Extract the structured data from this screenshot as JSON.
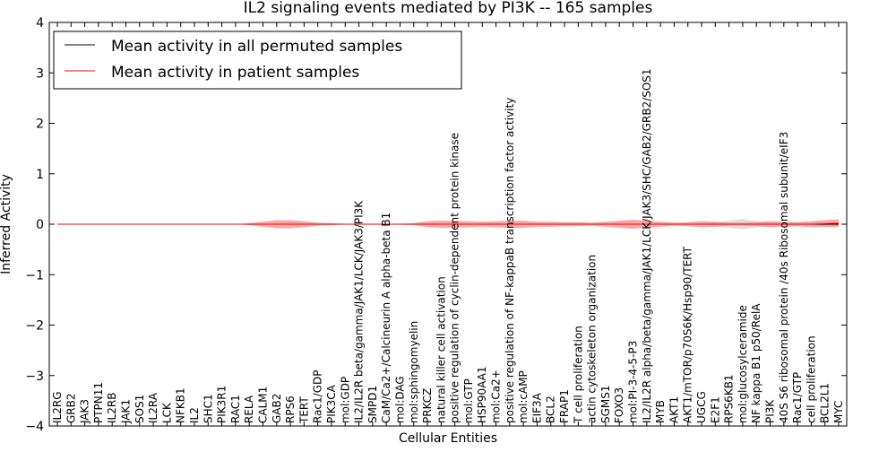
{
  "chart_data": {
    "type": "line",
    "title": "IL2 signaling events mediated by PI3K -- 165 samples",
    "xlabel": "Cellular Entities",
    "ylabel": "Inferred Activity",
    "ylim": [
      -4,
      4
    ],
    "yticks": [
      -4,
      -3,
      -2,
      -1,
      0,
      1,
      2,
      3,
      4
    ],
    "ytick_labels": [
      "−4",
      "−3",
      "−2",
      "−1",
      "0",
      "1",
      "2",
      "3",
      "4"
    ],
    "grid": false,
    "legend_position": "top-left",
    "categories": [
      "IL2RG",
      "GRB2",
      "JAK3",
      "PTPN11",
      "IL2RB",
      "JAK1",
      "SOS1",
      "IL2RA",
      "LCK",
      "NFKB1",
      "IL2",
      "SHC1",
      "PIK3R1",
      "RAC1",
      "RELA",
      "CALM1",
      "GAB2",
      "RPS6",
      "TERT",
      "Rac1/GDP",
      "PIK3CA",
      "mol:GDP",
      "IL2/IL2R beta/gamma/JAK1/LCK/JAK3/PI3K",
      "SMPD1",
      "CaM/Ca2+/Calcineurin A alpha-beta B1",
      "mol:DAG",
      "mol:sphingomyelin",
      "PRKCZ",
      "natural killer cell activation",
      "positive regulation of cyclin-dependent protein kinase",
      "mol:GTP",
      "HSP90AA1",
      "mol:Ca2+",
      "positive regulation of NF-kappaB transcription factor activity",
      "mol:cAMP",
      "EIF3A",
      "BCL2",
      "FRAP1",
      "T cell proliferation",
      "actin cytoskeleton organization",
      "SGMS1",
      "FOXO3",
      "mol:PI-3-4-5-P3",
      "IL2/IL2R alpha/beta/gamma/JAK1/LCK/JAK3/SHC/GAB2/GRB2/SOS1",
      "MYB",
      "AKT1",
      "AKT1/mTOR/p70S6K/Hsp90/TERT",
      "UGCG",
      "E2F1",
      "RPS6KB1",
      "mol:glucosylceramide",
      "NF kappa B1 p50/RelA",
      "PI3K",
      "40S S6 ribosomal protein /40s Ribosomal subunit/eIF3",
      "Rac1/GTP",
      "cell proliferation",
      "BCL2L1",
      "MYC"
    ],
    "series": [
      {
        "name": "Mean activity in all permuted samples",
        "color": "#000000",
        "values": [
          0,
          0,
          0,
          0,
          0,
          0,
          0,
          0,
          0,
          0,
          0,
          0,
          0,
          0,
          0,
          0,
          0,
          0,
          0,
          0,
          0,
          0,
          0,
          0,
          0,
          0,
          0,
          0,
          0,
          0,
          0,
          0,
          0,
          0,
          0,
          0,
          0,
          0,
          0,
          0,
          0,
          0,
          0,
          0,
          0,
          0,
          0,
          0,
          0,
          0,
          0,
          0,
          0,
          0,
          0,
          0,
          0,
          0
        ],
        "band_halfwidth": [
          0,
          0,
          0,
          0,
          0,
          0,
          0,
          0,
          0,
          0,
          0,
          0,
          0,
          0,
          0,
          0,
          0,
          0,
          0,
          0,
          0,
          0,
          0,
          0,
          0,
          0,
          0,
          0,
          0,
          0,
          0,
          0,
          0,
          0,
          0,
          0,
          0,
          0,
          0,
          0,
          0,
          0,
          0,
          0,
          0,
          0,
          0,
          0,
          0.04,
          0.07,
          0.1,
          0.06,
          0.04,
          0.03,
          0.03,
          0.03,
          0.03,
          0.03
        ],
        "band_color": "#c8c8c8"
      },
      {
        "name": "Mean activity in patient samples",
        "color": "#ff0000",
        "values": [
          0,
          0,
          0,
          0,
          0,
          0,
          0,
          0,
          0,
          0,
          0,
          0,
          0,
          0,
          0,
          0,
          0,
          0,
          0,
          0,
          0,
          0,
          0,
          0,
          0,
          0,
          0,
          0,
          0,
          0,
          0,
          0,
          0,
          0,
          0,
          0,
          0,
          0,
          0,
          0,
          0,
          0,
          0,
          0,
          0,
          0,
          0,
          0,
          0,
          0,
          0,
          0,
          0,
          0,
          0,
          0,
          0.01,
          0.02
        ],
        "band_halfwidth": [
          0,
          0,
          0,
          0,
          0,
          0,
          0,
          0,
          0,
          0,
          0,
          0,
          0,
          0,
          0.02,
          0.05,
          0.08,
          0.08,
          0.06,
          0.03,
          0.02,
          0.01,
          0.01,
          0.01,
          0.01,
          0.01,
          0.02,
          0.06,
          0.07,
          0.07,
          0.06,
          0.05,
          0.06,
          0.07,
          0.07,
          0.05,
          0.05,
          0.04,
          0.04,
          0.03,
          0.05,
          0.07,
          0.09,
          0.07,
          0.05,
          0.03,
          0.04,
          0.06,
          0.05,
          0.03,
          0.03,
          0.04,
          0.06,
          0.05,
          0.04,
          0.06,
          0.07,
          0.08
        ],
        "band_color": "#f28c8c"
      }
    ]
  }
}
